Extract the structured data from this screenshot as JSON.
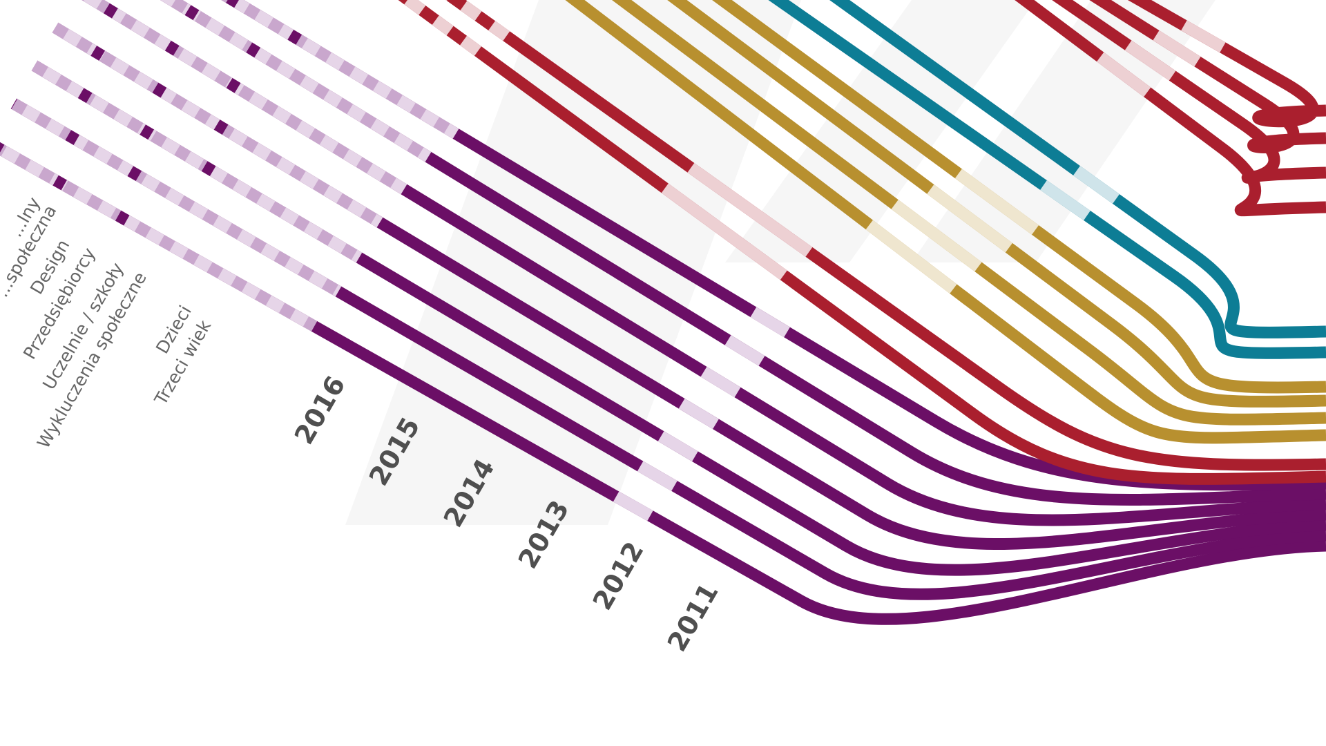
{
  "years": [
    "2016",
    "2015",
    "2014",
    "2013",
    "2012",
    "2011"
  ],
  "categories": [
    "...lny",
    "...społeczna",
    "Design",
    "Przedsiębiorcy",
    "Uczelnie / szkoły",
    "Wykluczenia społeczne",
    "Dzieci",
    "Trzeci wiek"
  ],
  "colors": {
    "purple": "#6b0f66",
    "purple_light": "#c9a7cd",
    "purple_pale": "#e6d5e8",
    "red": "#aa1f2e",
    "red_light": "#edd0d3",
    "gold": "#b8902f",
    "gold_light": "#efe6cf",
    "teal": "#0d7d95",
    "teal_light": "#cfe4ea",
    "band": "#efefef"
  }
}
